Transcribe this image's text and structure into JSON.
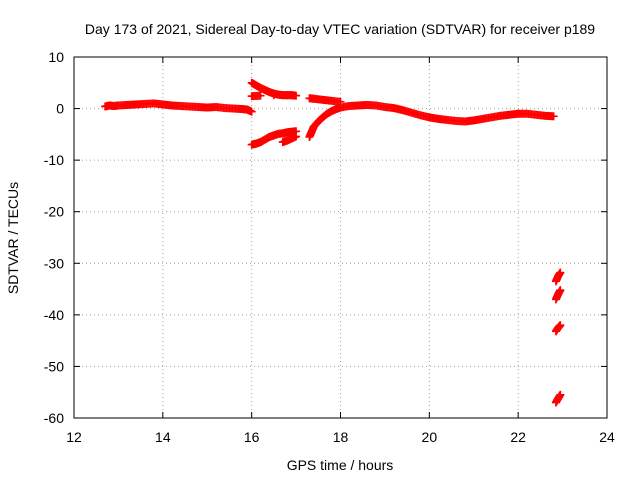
{
  "chart_data": {
    "type": "scatter",
    "title": "Day 173 of 2021, Sidereal Day-to-day VTEC variation (SDTVAR) for receiver p189",
    "xlabel": "GPS time / hours",
    "ylabel": "SDTVAR / TECUs",
    "xlim": [
      12,
      24
    ],
    "ylim": [
      -60,
      10
    ],
    "xticks": [
      12,
      14,
      16,
      18,
      20,
      22,
      24
    ],
    "yticks": [
      10,
      0,
      -10,
      -20,
      -30,
      -40,
      -50,
      -60
    ],
    "grid": true,
    "marker": "plus",
    "color": "#ff0000",
    "series": [
      {
        "values": [
          [
            12.7,
            0.4
          ],
          [
            12.8,
            0.6
          ],
          [
            12.9,
            0.5
          ],
          [
            13.0,
            0.6
          ],
          [
            13.2,
            0.7
          ],
          [
            13.4,
            0.8
          ],
          [
            13.6,
            0.9
          ],
          [
            13.8,
            1.0
          ],
          [
            14.0,
            0.8
          ],
          [
            14.2,
            0.6
          ],
          [
            14.4,
            0.5
          ],
          [
            14.6,
            0.4
          ],
          [
            14.8,
            0.3
          ],
          [
            15.0,
            0.2
          ],
          [
            15.2,
            0.3
          ],
          [
            15.4,
            0.1
          ],
          [
            15.6,
            0.0
          ],
          [
            15.8,
            -0.1
          ],
          [
            15.9,
            -0.2
          ],
          [
            16.0,
            -0.6
          ],
          [
            16.0,
            5.0
          ],
          [
            16.1,
            4.5
          ],
          [
            16.2,
            4.0
          ],
          [
            16.3,
            3.6
          ],
          [
            16.4,
            3.2
          ],
          [
            16.5,
            2.9
          ],
          [
            16.6,
            2.7
          ],
          [
            16.7,
            2.6
          ],
          [
            16.8,
            2.6
          ],
          [
            16.9,
            2.6
          ],
          [
            17.0,
            2.5
          ],
          [
            16.0,
            2.4
          ],
          [
            16.2,
            2.5
          ],
          [
            16.5,
            2.6
          ],
          [
            16.8,
            2.6
          ],
          [
            16.0,
            -7.0
          ],
          [
            16.1,
            -6.8
          ],
          [
            16.2,
            -6.5
          ],
          [
            16.3,
            -6.0
          ],
          [
            16.4,
            -5.5
          ],
          [
            16.5,
            -5.2
          ],
          [
            16.6,
            -4.9
          ],
          [
            16.7,
            -4.8
          ],
          [
            16.8,
            -4.6
          ],
          [
            16.9,
            -4.5
          ],
          [
            17.0,
            -4.4
          ],
          [
            16.7,
            -6.5
          ],
          [
            16.8,
            -6.2
          ],
          [
            16.9,
            -5.8
          ],
          [
            17.0,
            -5.4
          ],
          [
            17.3,
            2.0
          ],
          [
            17.4,
            1.9
          ],
          [
            17.6,
            1.7
          ],
          [
            17.8,
            1.5
          ],
          [
            18.0,
            1.3
          ],
          [
            17.3,
            -5.5
          ],
          [
            17.35,
            -4.5
          ],
          [
            17.4,
            -3.5
          ],
          [
            17.5,
            -2.5
          ],
          [
            17.6,
            -1.7
          ],
          [
            17.7,
            -1.0
          ],
          [
            17.8,
            -0.5
          ],
          [
            17.9,
            -0.1
          ],
          [
            18.0,
            0.2
          ],
          [
            18.2,
            0.5
          ],
          [
            18.4,
            0.6
          ],
          [
            18.6,
            0.7
          ],
          [
            18.8,
            0.6
          ],
          [
            19.0,
            0.3
          ],
          [
            19.2,
            0.1
          ],
          [
            19.4,
            -0.3
          ],
          [
            19.6,
            -0.8
          ],
          [
            19.8,
            -1.3
          ],
          [
            20.0,
            -1.7
          ],
          [
            20.2,
            -2.0
          ],
          [
            20.4,
            -2.2
          ],
          [
            20.6,
            -2.4
          ],
          [
            20.8,
            -2.5
          ],
          [
            21.0,
            -2.3
          ],
          [
            21.2,
            -2.0
          ],
          [
            21.4,
            -1.7
          ],
          [
            21.6,
            -1.4
          ],
          [
            21.8,
            -1.2
          ],
          [
            22.0,
            -1.0
          ],
          [
            22.2,
            -1.0
          ],
          [
            22.4,
            -1.2
          ],
          [
            22.6,
            -1.4
          ],
          [
            22.8,
            -1.5
          ],
          [
            22.85,
            -33.5
          ],
          [
            22.9,
            -32.5
          ],
          [
            22.95,
            -31.8
          ],
          [
            22.85,
            -37.0
          ],
          [
            22.9,
            -36.0
          ],
          [
            22.95,
            -35.2
          ],
          [
            22.85,
            -43.2
          ],
          [
            22.9,
            -42.5
          ],
          [
            22.95,
            -42.0
          ],
          [
            22.85,
            -57.0
          ],
          [
            22.9,
            -56.2
          ],
          [
            22.95,
            -55.5
          ]
        ]
      }
    ]
  }
}
